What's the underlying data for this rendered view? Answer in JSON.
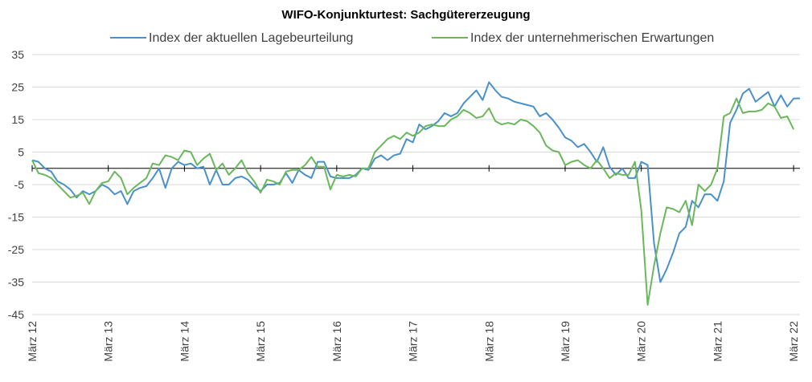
{
  "chart_data": {
    "type": "line",
    "title": "WIFO-Konjunkturtest: Sachgütererzeugung",
    "xlabel": "",
    "ylabel": "",
    "ylim": [
      -45,
      35
    ],
    "yticks": [
      35,
      25,
      15,
      5,
      -5,
      -15,
      -25,
      -35,
      -45
    ],
    "grid": "horizontal",
    "legend_position": "top-center",
    "x_start": "März 12",
    "x_ticks": [
      "März 12",
      "März 13",
      "März 14",
      "März 15",
      "März 16",
      "März 17",
      "März 18",
      "März 19",
      "März 20",
      "März 21",
      "März 22"
    ],
    "series": [
      {
        "name": "Index der aktuellen Lagebeurteilung",
        "color": "#4a90c9",
        "values": [
          2.5,
          2,
          0,
          -1,
          -4,
          -5,
          -6.5,
          -9,
          -7,
          -8,
          -7,
          -5,
          -6,
          -8,
          -7,
          -11,
          -7,
          -6,
          -5.5,
          -3,
          0,
          -6,
          0,
          2,
          1,
          1.5,
          0,
          0.5,
          -5,
          -0.5,
          -5,
          -5,
          -3,
          -2.5,
          -3.5,
          -5.5,
          -7,
          -5,
          -5,
          -4.5,
          -1.5,
          -4.5,
          -0.5,
          -2,
          -3,
          2,
          2,
          -2.5,
          -3,
          -3,
          -3,
          -2,
          0,
          -0.5,
          3,
          4,
          2.5,
          4,
          4.5,
          9,
          8,
          13.5,
          12,
          13,
          14.5,
          17,
          16,
          17,
          20,
          22,
          24,
          21,
          26.5,
          24,
          22,
          21.5,
          20.5,
          20,
          19.5,
          19,
          16,
          17,
          15,
          12.5,
          9.5,
          8.5,
          6.5,
          7.5,
          5,
          2,
          6.5,
          0.5,
          -2,
          0,
          -3,
          -3,
          2,
          1,
          -23,
          -35,
          -31,
          -26,
          -20,
          -18,
          -10,
          -12,
          -8,
          -8,
          -10,
          -4,
          14,
          18,
          23,
          24.5,
          20.5,
          22,
          23.5,
          19,
          22.5,
          19,
          21.5,
          21.5
        ]
      },
      {
        "name": "Index der unternehmerischen Erwartungen",
        "color": "#6ab85b",
        "values": [
          2.5,
          -1.5,
          -2,
          -3,
          -5,
          -7,
          -9,
          -8.5,
          -7.5,
          -11,
          -7,
          -4.5,
          -4,
          -1,
          -3,
          -8,
          -6,
          -4.5,
          -3,
          1.5,
          1,
          4,
          3.5,
          2.5,
          5.5,
          5,
          1,
          3,
          4.5,
          -0.5,
          1.5,
          -2,
          0,
          2.5,
          -1.5,
          -4,
          -7.5,
          -3.5,
          -4,
          -5,
          -1,
          -0.5,
          -0.5,
          1,
          3.5,
          0.5,
          0.5,
          -6.5,
          -2,
          -2.5,
          -2,
          -2.5,
          0,
          0,
          5,
          7,
          9,
          10,
          9,
          11,
          10,
          11,
          13,
          13.5,
          13,
          13,
          15,
          16,
          18,
          17,
          15.5,
          16,
          18.5,
          14.5,
          13.5,
          14,
          13.5,
          15,
          14.5,
          13,
          11,
          7,
          5.5,
          5,
          1,
          2,
          2.5,
          1,
          0,
          2.5,
          0,
          -3,
          -1.5,
          -2,
          -2,
          2,
          -13,
          -42,
          -30,
          -20,
          -12,
          -12.5,
          -13.5,
          -10,
          -17.5,
          -5,
          -7,
          -5,
          0,
          16,
          17,
          21.5,
          17,
          17.5,
          17.5,
          18,
          20,
          19,
          15.5,
          16,
          12
        ]
      }
    ]
  }
}
